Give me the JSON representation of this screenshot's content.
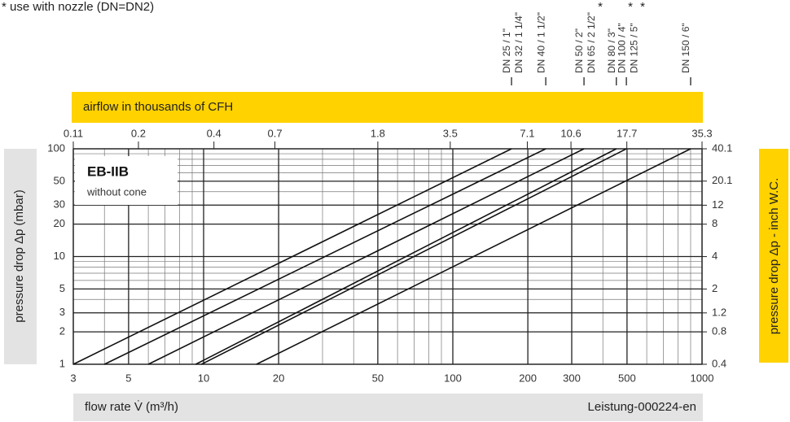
{
  "chart_data": {
    "type": "line",
    "note": "* use with nozzle (DN=DN2)",
    "x_label": "flow rate V̇ (m³/h)",
    "x2_label": "airflow in thousands of CFH",
    "y_label": "pressure drop Δp (mbar)",
    "y2_label": "pressure  drop Δp - inch W.C.",
    "doc_id": "Leistung-000224-en",
    "inset": {
      "title": "EB-IIB",
      "subtitle": "without cone"
    },
    "log_x": true,
    "log_y": true,
    "grid": true,
    "minor_grid": true,
    "color": "#111111",
    "xlim": [
      3,
      1000
    ],
    "xticks": [
      3,
      5,
      10,
      20,
      50,
      100,
      200,
      300,
      500,
      1000
    ],
    "x2lim": [
      0.11,
      35.3
    ],
    "x2ticks": [
      0.11,
      0.2,
      0.4,
      0.7,
      1.8,
      3.5,
      7.1,
      10.6,
      17.7,
      35.3
    ],
    "ylim": [
      1,
      100
    ],
    "yticks": [
      1,
      2,
      3,
      5,
      10,
      20,
      30,
      50,
      100
    ],
    "y2lim": [
      0.4,
      40.1
    ],
    "y2ticks": [
      0.4,
      0.8,
      1.2,
      2,
      4,
      8,
      12,
      20.1,
      40.1
    ],
    "series": [
      {
        "labels": [
          {
            "text": "DN 25 / 1\""
          },
          {
            "text": "DN 32 / 1 1/4\""
          }
        ],
        "x": [
          3,
          172
        ],
        "values": [
          1,
          100
        ]
      },
      {
        "labels": [
          {
            "text": "DN 40 / 1 1/2\""
          }
        ],
        "x": [
          4,
          236
        ],
        "values": [
          1,
          100
        ]
      },
      {
        "labels": [
          {
            "text": "DN 50 / 2\""
          },
          {
            "text": "DN 65 / 2 1/2\"",
            "mark": "*"
          }
        ],
        "x": [
          6,
          336
        ],
        "values": [
          1,
          100
        ]
      },
      {
        "labels": [
          {
            "text": "DN 80 / 3\""
          }
        ],
        "x": [
          9.3,
          453
        ],
        "values": [
          1,
          100
        ]
      },
      {
        "labels": [
          {
            "text": "DN 100 / 4\"",
            "mark": "*"
          },
          {
            "text": "DN 125 / 5\"",
            "mark": "*"
          }
        ],
        "x": [
          9.8,
          497
        ],
        "values": [
          1,
          100
        ]
      },
      {
        "labels": [
          {
            "text": "DN 150 / 6\""
          }
        ],
        "x": [
          16.3,
          900
        ],
        "values": [
          1,
          100
        ]
      }
    ]
  }
}
